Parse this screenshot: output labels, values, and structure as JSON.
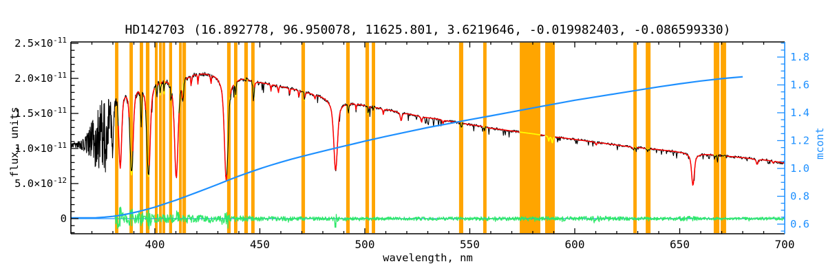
{
  "title": {
    "star": "HD142703",
    "params": "(16.892778, 96.950078, 11625.801, 3.6219646, -0.019982403, -0.086599330)"
  },
  "chart_data": {
    "type": "line",
    "title": "HD142703  (16.892778, 96.950078, 11625.801, 3.6219646, -0.019982403, -0.086599330)",
    "xlabel": "wavelength, nm",
    "ylabel_left": "flux, units",
    "ylabel_right": "mcont",
    "x_range": [
      360,
      700
    ],
    "x_major_ticks": [
      400,
      450,
      500,
      550,
      600,
      650,
      700
    ],
    "x_minor_step": 10,
    "y_left_range_e11": [
      -0.2157,
      2.5196
    ],
    "y_left_major_ticks": [
      {
        "value": 0.0,
        "label": "0",
        "exp": ""
      },
      {
        "value": 0.5,
        "label": "5.0×10",
        "exp": "-12"
      },
      {
        "value": 1.0,
        "label": "1.0×10",
        "exp": "-11"
      },
      {
        "value": 1.5,
        "label": "1.5×10",
        "exp": "-11"
      },
      {
        "value": 2.0,
        "label": "2.0×10",
        "exp": "-11"
      },
      {
        "value": 2.5,
        "label": "2.5×10",
        "exp": "-11"
      }
    ],
    "y_left_minor_step_e11": 0.1,
    "y_right_range": [
      0.5309,
      1.9086
    ],
    "y_right_major_ticks": [
      0.6,
      0.8,
      1.0,
      1.2,
      1.4,
      1.6,
      1.8
    ],
    "y_right_minor_step": 0.05,
    "grid": false,
    "legend": "none",
    "colors": {
      "frame": "#000000",
      "right_axis": "#1E90FF",
      "observed": "#000000",
      "model_fit": "#FF0000",
      "model_masked": "#FFFF00",
      "masked_band": "#FFA500",
      "mcont_curve": "#1E90FF",
      "zero_line": "#1E90FF",
      "residual": "#2EE86A",
      "background": "#FFFFFF"
    },
    "series": [
      {
        "name": "observed spectrum",
        "color": "#000000",
        "axis": "left",
        "range_nm": [
          360.1,
          700
        ]
      },
      {
        "name": "model fit",
        "color": "#FF0000",
        "axis": "left",
        "range_nm": [
          382.5,
          700
        ]
      },
      {
        "name": "model over masked bands",
        "color": "#FFFF00",
        "axis": "left"
      },
      {
        "name": "mcont continuum curve",
        "color": "#1E90FF",
        "axis": "right",
        "range_nm": [
          360,
          680
        ]
      },
      {
        "name": "fit residual",
        "color": "#2EE86A",
        "axis": "left",
        "range_nm": [
          381,
          700
        ]
      }
    ],
    "continuum_e11": [
      [
        360,
        1.05
      ],
      [
        364,
        1.06
      ],
      [
        366,
        1.07
      ],
      [
        368,
        1.09
      ],
      [
        370,
        1.1
      ],
      [
        372,
        1.14
      ],
      [
        374,
        1.2
      ],
      [
        376,
        1.28
      ],
      [
        377,
        1.45
      ],
      [
        378,
        1.62
      ],
      [
        379,
        1.78
      ],
      [
        380,
        1.9
      ],
      [
        382,
        1.96
      ],
      [
        384,
        1.99
      ],
      [
        386,
        2.01
      ],
      [
        388,
        2.02
      ],
      [
        390,
        2.03
      ],
      [
        393,
        2.04
      ],
      [
        396,
        2.05
      ],
      [
        400,
        2.06
      ],
      [
        404,
        2.07
      ],
      [
        408,
        2.08
      ],
      [
        412,
        2.09
      ],
      [
        416,
        2.09
      ],
      [
        420,
        2.1
      ],
      [
        424,
        2.1
      ],
      [
        428,
        2.1
      ],
      [
        432,
        2.09
      ],
      [
        436,
        2.07
      ],
      [
        440,
        2.04
      ],
      [
        444,
        2.01
      ],
      [
        448,
        1.97
      ],
      [
        452,
        1.94
      ],
      [
        456,
        1.92
      ],
      [
        460,
        1.89
      ],
      [
        465,
        1.86
      ],
      [
        470,
        1.83
      ],
      [
        475,
        1.79
      ],
      [
        480,
        1.76
      ],
      [
        485,
        1.73
      ],
      [
        490,
        1.69
      ],
      [
        495,
        1.66
      ],
      [
        500,
        1.62
      ],
      [
        505,
        1.59
      ],
      [
        510,
        1.56
      ],
      [
        515,
        1.53
      ],
      [
        520,
        1.5
      ],
      [
        525,
        1.47
      ],
      [
        530,
        1.44
      ],
      [
        535,
        1.42
      ],
      [
        540,
        1.39
      ],
      [
        545,
        1.37
      ],
      [
        550,
        1.34
      ],
      [
        555,
        1.32
      ],
      [
        560,
        1.29
      ],
      [
        565,
        1.27
      ],
      [
        570,
        1.25
      ],
      [
        575,
        1.23
      ],
      [
        580,
        1.21
      ],
      [
        585,
        1.19
      ],
      [
        590,
        1.17
      ],
      [
        595,
        1.15
      ],
      [
        600,
        1.13
      ],
      [
        605,
        1.11
      ],
      [
        610,
        1.09
      ],
      [
        615,
        1.07
      ],
      [
        620,
        1.05
      ],
      [
        625,
        1.03
      ],
      [
        630,
        1.015
      ],
      [
        635,
        1.0
      ],
      [
        640,
        0.985
      ],
      [
        645,
        0.97
      ],
      [
        650,
        0.955
      ],
      [
        655,
        0.945
      ],
      [
        660,
        0.93
      ],
      [
        665,
        0.915
      ],
      [
        670,
        0.9
      ],
      [
        675,
        0.885
      ],
      [
        680,
        0.87
      ],
      [
        685,
        0.855
      ],
      [
        690,
        0.84
      ],
      [
        695,
        0.82
      ],
      [
        700,
        0.79
      ]
    ],
    "absorption_lines": [
      {
        "c": 377.1,
        "d": 0.3,
        "w": 0.55
      },
      {
        "c": 379.8,
        "d": 0.42,
        "w": 0.65
      },
      {
        "c": 383.5,
        "d": 0.62,
        "w": 0.85
      },
      {
        "c": 388.9,
        "d": 0.68,
        "w": 0.95
      },
      {
        "c": 393.4,
        "d": 0.3,
        "w": 0.28
      },
      {
        "c": 397.0,
        "d": 0.7,
        "w": 1.0
      },
      {
        "c": 410.2,
        "d": 0.72,
        "w": 1.05
      },
      {
        "c": 434.0,
        "d": 0.74,
        "w": 1.1
      },
      {
        "c": 486.1,
        "d": 0.6,
        "w": 1.1
      },
      {
        "c": 656.3,
        "d": 0.5,
        "w": 0.8
      },
      {
        "c": 400.9,
        "d": 0.1,
        "w": 0.2
      },
      {
        "c": 402.6,
        "d": 0.12,
        "w": 0.2
      },
      {
        "c": 404.4,
        "d": 0.1,
        "w": 0.2
      },
      {
        "c": 407.7,
        "d": 0.1,
        "w": 0.2
      },
      {
        "c": 413.1,
        "d": 0.1,
        "w": 0.22
      },
      {
        "c": 417.3,
        "d": 0.08,
        "w": 0.2
      },
      {
        "c": 420.5,
        "d": 0.07,
        "w": 0.2
      },
      {
        "c": 426.7,
        "d": 0.07,
        "w": 0.2
      },
      {
        "c": 438.5,
        "d": 0.11,
        "w": 0.25
      },
      {
        "c": 447.1,
        "d": 0.13,
        "w": 0.3
      },
      {
        "c": 455.3,
        "d": 0.05,
        "w": 0.2
      },
      {
        "c": 458.8,
        "d": 0.06,
        "w": 0.2
      },
      {
        "c": 464.2,
        "d": 0.05,
        "w": 0.2
      },
      {
        "c": 468.6,
        "d": 0.06,
        "w": 0.2
      },
      {
        "c": 471.3,
        "d": 0.07,
        "w": 0.25
      },
      {
        "c": 476.2,
        "d": 0.04,
        "w": 0.2
      },
      {
        "c": 492.2,
        "d": 0.08,
        "w": 0.3
      },
      {
        "c": 495.8,
        "d": 0.05,
        "w": 0.2
      },
      {
        "c": 501.6,
        "d": 0.07,
        "w": 0.25
      },
      {
        "c": 508.8,
        "d": 0.05,
        "w": 0.22
      },
      {
        "c": 517.3,
        "d": 0.08,
        "w": 0.45
      },
      {
        "c": 527.0,
        "d": 0.06,
        "w": 0.3
      },
      {
        "c": 537.2,
        "d": 0.04,
        "w": 0.25
      },
      {
        "c": 546.1,
        "d": 0.05,
        "w": 0.25
      },
      {
        "c": 557.0,
        "d": 0.04,
        "w": 0.2
      },
      {
        "c": 587.6,
        "d": 0.06,
        "w": 0.3
      },
      {
        "c": 589.3,
        "d": 0.08,
        "w": 0.35
      },
      {
        "c": 610.2,
        "d": 0.04,
        "w": 0.3
      },
      {
        "c": 628.0,
        "d": 0.05,
        "w": 0.35
      },
      {
        "c": 634.8,
        "d": 0.04,
        "w": 0.3
      },
      {
        "c": 667.8,
        "d": 0.06,
        "w": 0.3
      },
      {
        "c": 686.9,
        "d": 0.09,
        "w": 0.5
      },
      {
        "c": 694.5,
        "d": 0.04,
        "w": 0.3
      }
    ],
    "masked_bands_nm": [
      [
        381.0,
        382.6
      ],
      [
        387.9,
        389.5
      ],
      [
        392.8,
        394.4
      ],
      [
        395.7,
        397.4
      ],
      [
        400.0,
        401.3
      ],
      [
        402.0,
        403.0
      ],
      [
        403.6,
        404.9
      ],
      [
        406.8,
        408.2
      ],
      [
        411.5,
        412.5
      ],
      [
        413.1,
        414.8
      ],
      [
        434.4,
        436.1
      ],
      [
        437.7,
        439.3
      ],
      [
        442.6,
        444.3
      ],
      [
        445.9,
        447.5
      ],
      [
        469.8,
        471.5
      ],
      [
        491.1,
        492.8
      ],
      [
        500.3,
        502.0
      ],
      [
        503.3,
        504.9
      ],
      [
        544.9,
        546.9
      ],
      [
        556.4,
        558.0
      ],
      [
        573.8,
        583.6
      ],
      [
        585.9,
        590.5
      ],
      [
        627.9,
        629.5
      ],
      [
        633.8,
        636.1
      ],
      [
        666.2,
        668.9
      ],
      [
        669.5,
        672.1
      ]
    ],
    "observed_gap_band_indices": [
      20,
      21
    ],
    "mcont_points": [
      [
        360,
        0.645
      ],
      [
        368,
        0.645
      ],
      [
        372,
        0.646
      ],
      [
        376,
        0.65
      ],
      [
        380,
        0.656
      ],
      [
        384,
        0.664
      ],
      [
        388,
        0.676
      ],
      [
        392,
        0.69
      ],
      [
        396,
        0.705
      ],
      [
        400,
        0.722
      ],
      [
        405,
        0.747
      ],
      [
        410,
        0.772
      ],
      [
        415,
        0.8
      ],
      [
        420,
        0.828
      ],
      [
        425,
        0.857
      ],
      [
        430,
        0.886
      ],
      [
        435,
        0.916
      ],
      [
        440,
        0.945
      ],
      [
        445,
        0.972
      ],
      [
        450,
        0.998
      ],
      [
        455,
        1.022
      ],
      [
        460,
        1.045
      ],
      [
        465,
        1.066
      ],
      [
        470,
        1.086
      ],
      [
        475,
        1.105
      ],
      [
        480,
        1.124
      ],
      [
        485,
        1.142
      ],
      [
        490,
        1.16
      ],
      [
        495,
        1.178
      ],
      [
        500,
        1.196
      ],
      [
        510,
        1.23
      ],
      [
        520,
        1.262
      ],
      [
        530,
        1.294
      ],
      [
        540,
        1.322
      ],
      [
        550,
        1.35
      ],
      [
        560,
        1.378
      ],
      [
        570,
        1.406
      ],
      [
        580,
        1.434
      ],
      [
        590,
        1.462
      ],
      [
        600,
        1.49
      ],
      [
        610,
        1.514
      ],
      [
        620,
        1.538
      ],
      [
        630,
        1.562
      ],
      [
        640,
        1.586
      ],
      [
        650,
        1.608
      ],
      [
        660,
        1.628
      ],
      [
        670,
        1.645
      ],
      [
        675,
        1.652
      ],
      [
        680,
        1.658
      ]
    ],
    "zero_line_flux_e11": 0.0,
    "noise_profile_e11": [
      [
        360,
        0.035
      ],
      [
        364,
        0.05
      ],
      [
        366,
        0.1
      ],
      [
        368,
        0.18
      ],
      [
        370,
        0.3
      ],
      [
        372,
        0.4
      ],
      [
        374,
        0.5
      ],
      [
        376,
        0.52
      ],
      [
        377,
        0.45
      ],
      [
        378,
        0.35
      ],
      [
        379,
        0.25
      ],
      [
        380,
        0.16
      ],
      [
        381,
        0.07
      ],
      [
        383,
        0.055
      ],
      [
        390,
        0.05
      ],
      [
        400,
        0.04
      ],
      [
        420,
        0.032
      ],
      [
        450,
        0.025
      ],
      [
        500,
        0.02
      ],
      [
        550,
        0.018
      ],
      [
        600,
        0.018
      ],
      [
        650,
        0.018
      ],
      [
        700,
        0.022
      ]
    ],
    "residual_amp_e11": [
      [
        381,
        0.075
      ],
      [
        385,
        0.07
      ],
      [
        395,
        0.065
      ],
      [
        405,
        0.06
      ],
      [
        415,
        0.055
      ],
      [
        425,
        0.05
      ],
      [
        435,
        0.045
      ],
      [
        445,
        0.04
      ],
      [
        455,
        0.032
      ],
      [
        470,
        0.028
      ],
      [
        490,
        0.025
      ],
      [
        510,
        0.024
      ],
      [
        530,
        0.024
      ],
      [
        550,
        0.026
      ],
      [
        565,
        0.03
      ],
      [
        580,
        0.028
      ],
      [
        600,
        0.03
      ],
      [
        612,
        0.045
      ],
      [
        618,
        0.03
      ],
      [
        640,
        0.022
      ],
      [
        656,
        0.035
      ],
      [
        660,
        0.022
      ],
      [
        680,
        0.02
      ],
      [
        700,
        0.025
      ]
    ]
  }
}
